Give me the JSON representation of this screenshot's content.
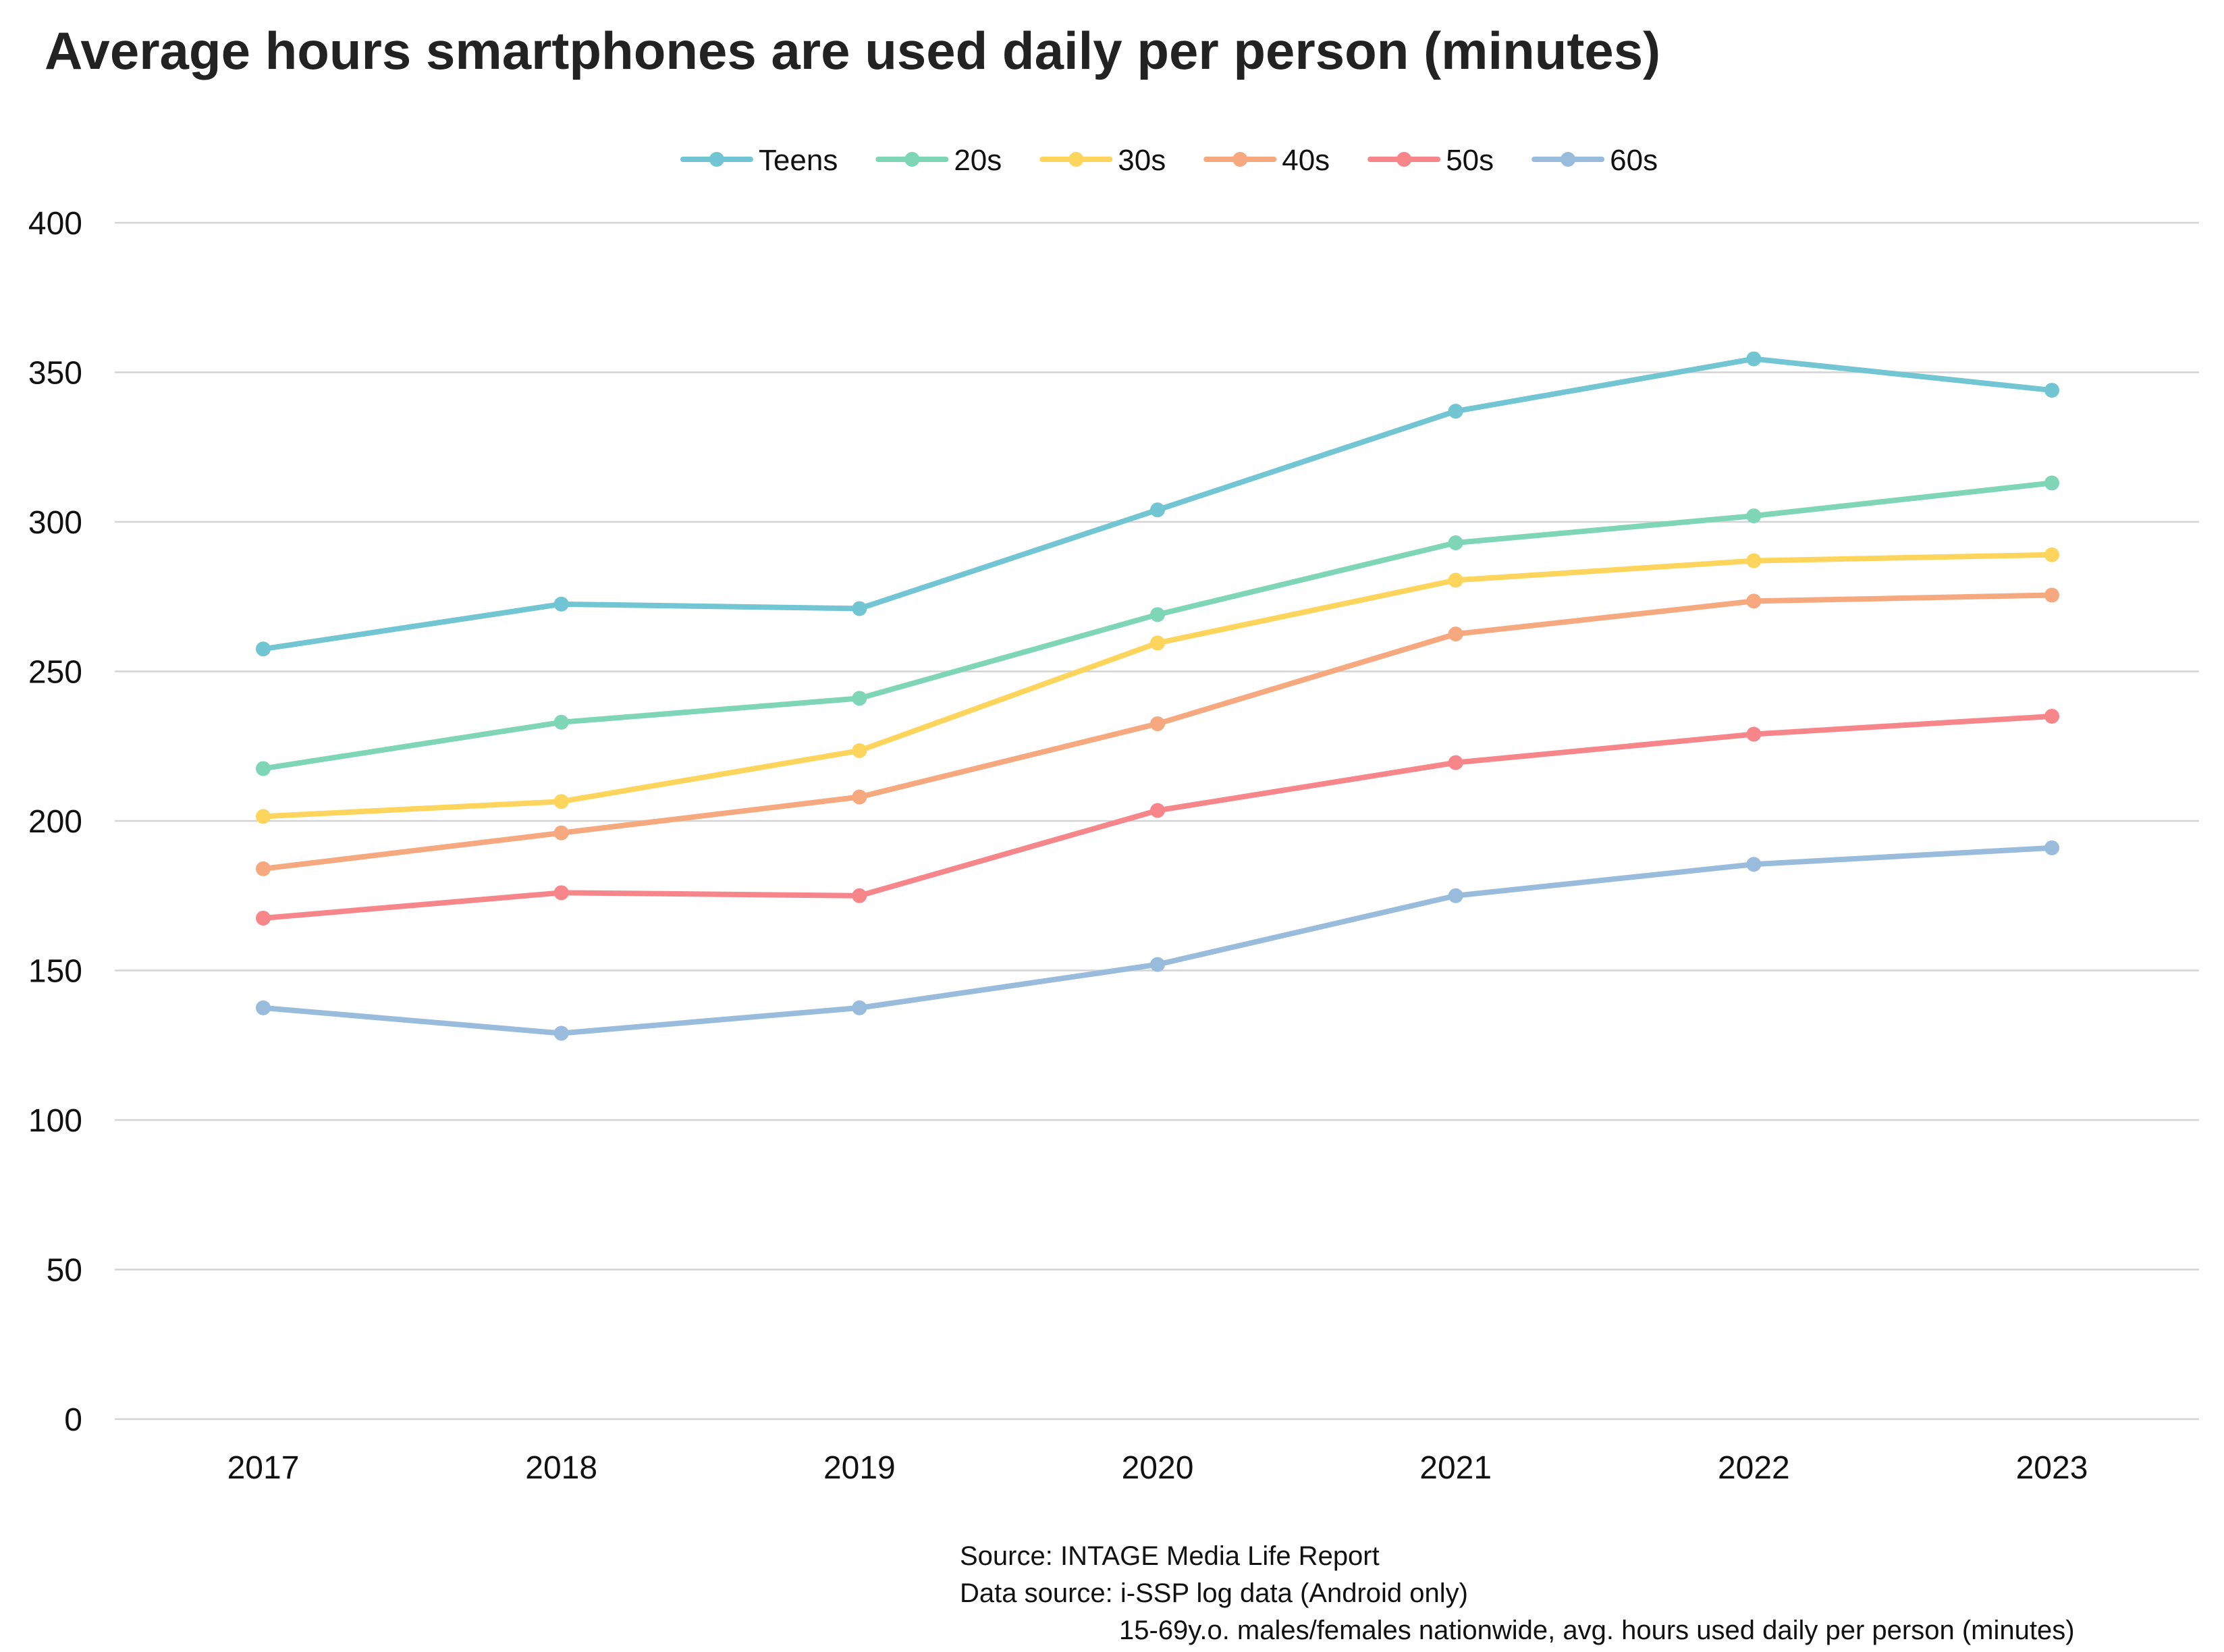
{
  "chart_data": {
    "type": "line",
    "title": "Average hours smartphones are used daily per person (minutes)",
    "xlabel": "",
    "ylabel": "",
    "x": [
      "2017",
      "2018",
      "2019",
      "2020",
      "2021",
      "2022",
      "2023"
    ],
    "ylim": [
      0,
      400
    ],
    "yticks": [
      0,
      50,
      100,
      150,
      200,
      250,
      300,
      350,
      400
    ],
    "grid": true,
    "legend_position": "top-center",
    "series": [
      {
        "name": "Teens",
        "color": "#72c5d3",
        "values": [
          257.5,
          272.5,
          271,
          304,
          337,
          354.5,
          344
        ]
      },
      {
        "name": "20s",
        "color": "#7fd6b6",
        "values": [
          217.5,
          233,
          241,
          269,
          293,
          302,
          313
        ]
      },
      {
        "name": "30s",
        "color": "#fdd55c",
        "values": [
          201.5,
          206.5,
          223.5,
          259.5,
          280.5,
          287,
          289
        ]
      },
      {
        "name": "40s",
        "color": "#f6a97f",
        "values": [
          184,
          196,
          208,
          232.5,
          262.5,
          273.5,
          275.5
        ]
      },
      {
        "name": "50s",
        "color": "#f7868a",
        "values": [
          167.5,
          176,
          175,
          203.5,
          219.5,
          229,
          235
        ]
      },
      {
        "name": "60s",
        "color": "#99bbdc",
        "values": [
          137.5,
          129,
          137.5,
          152,
          175,
          185.5,
          191
        ]
      }
    ]
  },
  "footnote": {
    "source": "Source: INTAGE Media Life Report",
    "data_source": "Data source: i-SSP log data (Android only)",
    "population": "15-69y.o. males/females nationwide, avg. hours used daily per person (minutes)"
  }
}
